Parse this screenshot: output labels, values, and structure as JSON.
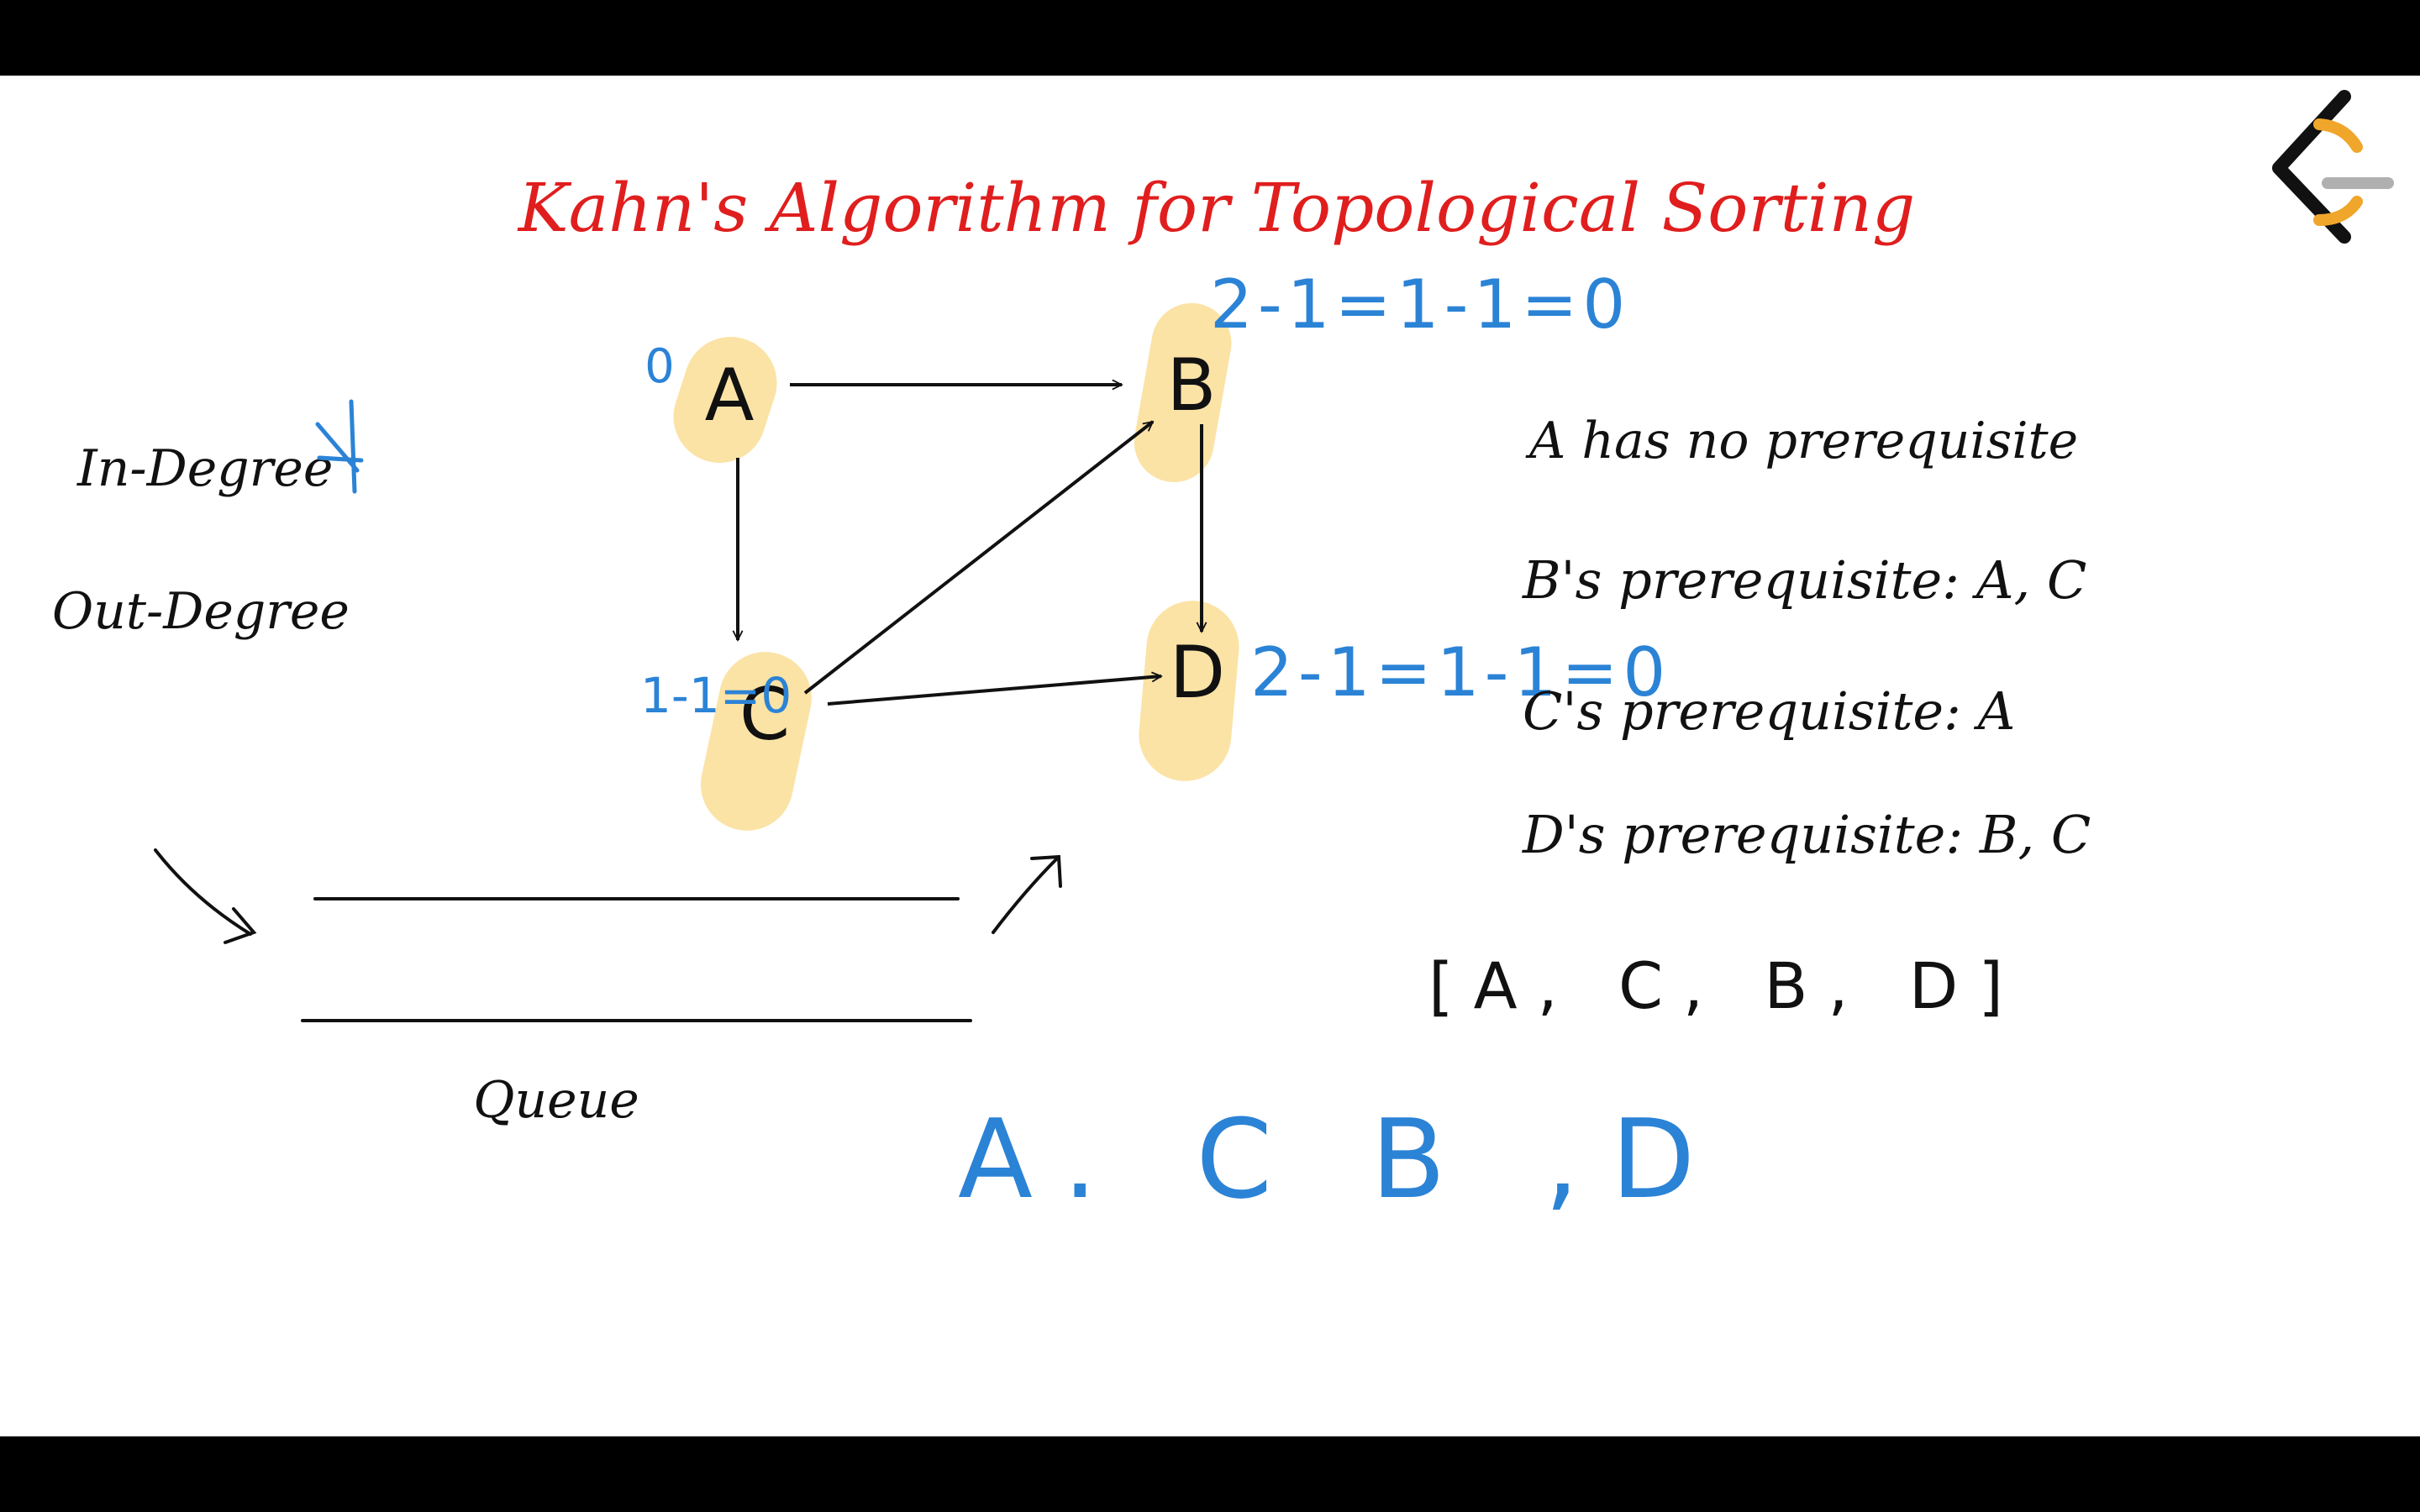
{
  "title": "Kahn's Algorithm for Topological Sorting",
  "colors": {
    "title": "#e01e1e",
    "ink": "#111111",
    "annotation": "#2b83d6",
    "highlight": "#fbe3a6",
    "logo_orange": "#f0a62b",
    "logo_gray": "#b0b0b0",
    "letterbox": "#000000"
  },
  "legend": {
    "in_degree": "In-Degree",
    "out_degree": "Out-Degree",
    "queue": "Queue"
  },
  "graph": {
    "nodes": [
      {
        "id": "A",
        "label": "A",
        "annotation": "0"
      },
      {
        "id": "B",
        "label": "B",
        "annotation": "2-1=1-1=0"
      },
      {
        "id": "C",
        "label": "C",
        "annotation": "1-1=0"
      },
      {
        "id": "D",
        "label": "D",
        "annotation": "2-1=1-1=0"
      }
    ],
    "edges": [
      {
        "from": "A",
        "to": "B"
      },
      {
        "from": "A",
        "to": "C"
      },
      {
        "from": "C",
        "to": "B"
      },
      {
        "from": "C",
        "to": "D"
      },
      {
        "from": "B",
        "to": "D"
      }
    ]
  },
  "prerequisites": [
    "A has no prerequisite",
    "B's prerequisite: A, C",
    "C's prerequisite: A",
    "D's prerequisite: B, C"
  ],
  "result_bracket": "[A, C, B, D]",
  "result_handwritten": "A. C B ,D",
  "logo_icon": "leetcode-logo"
}
